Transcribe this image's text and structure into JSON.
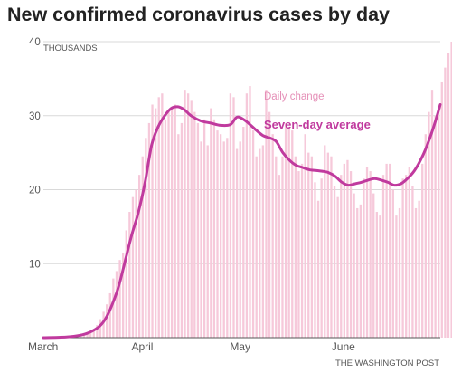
{
  "chart_data": {
    "type": "bar",
    "title": "New confirmed coronavirus cases by day",
    "y_unit_label": "THOUSANDS",
    "ylim": [
      0,
      40
    ],
    "yticks": [
      10,
      20,
      30,
      40
    ],
    "x_month_labels": [
      "March",
      "April",
      "May",
      "June"
    ],
    "x_range_days": [
      "2020-03-01",
      "2020-06-30"
    ],
    "grid": true,
    "colors": {
      "bars": "#f6c9da",
      "average": "#c03a9e",
      "grid": "#d9d9d9",
      "text": "#222222"
    },
    "series": [
      {
        "name": "Daily change",
        "dates_start": "2020-03-01",
        "values": [
          0.02,
          0.03,
          0.04,
          0.05,
          0.06,
          0.08,
          0.1,
          0.12,
          0.15,
          0.18,
          0.25,
          0.35,
          0.45,
          0.6,
          0.8,
          1.1,
          1.7,
          2.5,
          3.5,
          4.5,
          6.0,
          8.0,
          9.0,
          10.5,
          11.5,
          14.5,
          17.0,
          19.0,
          20.0,
          22.0,
          24.5,
          27.0,
          29.0,
          31.5,
          31.0,
          32.5,
          33.0,
          29.5,
          30.5,
          31.0,
          31.5,
          27.5,
          29.0,
          33.5,
          33.0,
          32.0,
          30.5,
          29.0,
          26.5,
          29.5,
          26.0,
          31.0,
          29.5,
          28.0,
          27.5,
          26.5,
          27.0,
          33.0,
          32.5,
          25.5,
          26.5,
          28.5,
          33.0,
          34.0,
          28.0,
          24.5,
          25.5,
          26.0,
          33.5,
          30.5,
          27.5,
          24.5,
          22.0,
          24.5,
          29.0,
          28.5,
          28.0,
          24.5,
          22.5,
          23.5,
          27.5,
          25.0,
          24.5,
          21.0,
          18.5,
          21.5,
          26.0,
          25.0,
          24.5,
          20.5,
          19.0,
          22.0,
          23.5,
          24.0,
          22.5,
          19.5,
          17.5,
          18.0,
          21.5,
          23.0,
          22.5,
          19.5,
          17.0,
          16.5,
          22.0,
          23.5,
          23.5,
          20.0,
          16.5,
          17.5,
          21.5,
          22.0,
          23.0,
          20.5,
          17.5,
          18.5,
          23.5,
          27.5,
          30.5,
          33.5,
          30.0,
          31.0,
          34.5,
          36.5,
          38.5,
          40.0
        ]
      },
      {
        "name": "Seven-day average",
        "points": [
          [
            "2020-03-01",
            0.0
          ],
          [
            "2020-03-08",
            0.1
          ],
          [
            "2020-03-12",
            0.3
          ],
          [
            "2020-03-15",
            0.7
          ],
          [
            "2020-03-18",
            1.5
          ],
          [
            "2020-03-20",
            2.6
          ],
          [
            "2020-03-22",
            4.5
          ],
          [
            "2020-03-24",
            7.0
          ],
          [
            "2020-03-26",
            10.5
          ],
          [
            "2020-03-28",
            14.0
          ],
          [
            "2020-03-30",
            17.0
          ],
          [
            "2020-04-01",
            21.0
          ],
          [
            "2020-04-03",
            26.0
          ],
          [
            "2020-04-05",
            28.5
          ],
          [
            "2020-04-07",
            30.0
          ],
          [
            "2020-04-09",
            31.0
          ],
          [
            "2020-04-11",
            31.2
          ],
          [
            "2020-04-13",
            30.8
          ],
          [
            "2020-04-15",
            30.0
          ],
          [
            "2020-04-18",
            29.3
          ],
          [
            "2020-04-21",
            29.0
          ],
          [
            "2020-04-24",
            28.7
          ],
          [
            "2020-04-27",
            28.8
          ],
          [
            "2020-04-29",
            29.8
          ],
          [
            "2020-05-01",
            29.5
          ],
          [
            "2020-05-03",
            28.8
          ],
          [
            "2020-05-05",
            28.0
          ],
          [
            "2020-05-07",
            27.3
          ],
          [
            "2020-05-09",
            27.0
          ],
          [
            "2020-05-11",
            26.5
          ],
          [
            "2020-05-13",
            25.0
          ],
          [
            "2020-05-15",
            24.0
          ],
          [
            "2020-05-17",
            23.3
          ],
          [
            "2020-05-19",
            23.0
          ],
          [
            "2020-05-21",
            22.7
          ],
          [
            "2020-05-23",
            22.6
          ],
          [
            "2020-05-25",
            22.5
          ],
          [
            "2020-05-27",
            22.3
          ],
          [
            "2020-05-29",
            21.8
          ],
          [
            "2020-05-31",
            21.0
          ],
          [
            "2020-06-02",
            20.6
          ],
          [
            "2020-06-04",
            20.8
          ],
          [
            "2020-06-06",
            21.0
          ],
          [
            "2020-06-08",
            21.3
          ],
          [
            "2020-06-10",
            21.5
          ],
          [
            "2020-06-12",
            21.3
          ],
          [
            "2020-06-14",
            21.0
          ],
          [
            "2020-06-16",
            20.6
          ],
          [
            "2020-06-18",
            20.8
          ],
          [
            "2020-06-20",
            21.5
          ],
          [
            "2020-06-22",
            22.5
          ],
          [
            "2020-06-24",
            24.0
          ],
          [
            "2020-06-26",
            26.0
          ],
          [
            "2020-06-28",
            28.5
          ],
          [
            "2020-06-30",
            31.5
          ]
        ]
      }
    ],
    "annotations": [
      "Daily change",
      "Seven-day average"
    ],
    "source": "THE WASHINGTON POST"
  }
}
